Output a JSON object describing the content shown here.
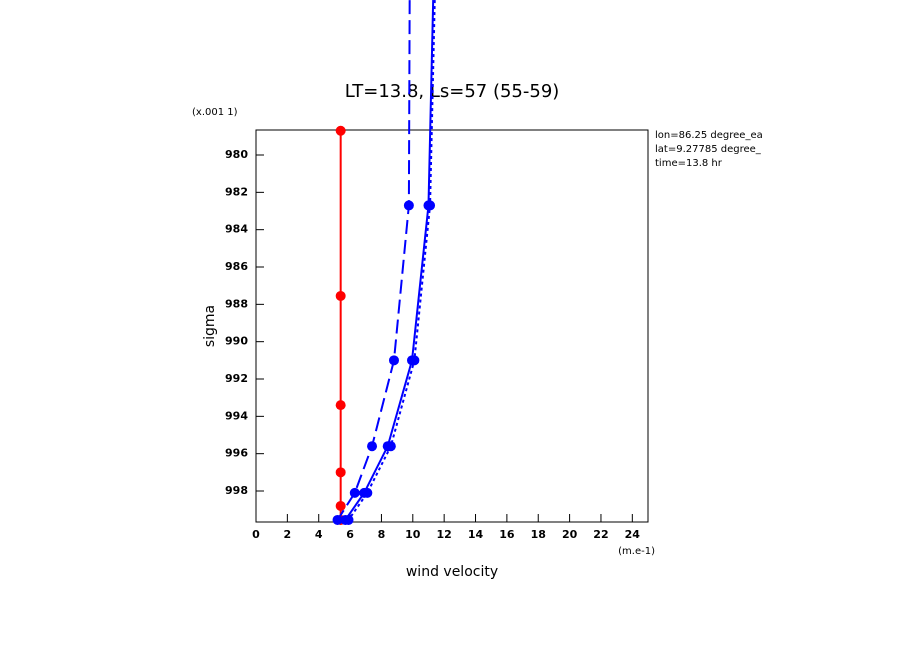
{
  "chart_data": {
    "type": "line",
    "title": "LT=13.8, Ls=57 (55-59)",
    "x_label": "wind velocity",
    "y_label": "sigma",
    "x_unit": "(m.e-1)",
    "y_unit": "(x.001 1)",
    "annotations": [
      "lon=86.25 degree_ea",
      "lat=9.27785 degree_",
      "time=13.8 hr"
    ],
    "xlim": [
      0,
      25
    ],
    "xticks": [
      0,
      2,
      4,
      6,
      8,
      10,
      12,
      14,
      16,
      18,
      20,
      22,
      24
    ],
    "ylim": [
      999.66,
      978.66
    ],
    "yticks": [
      980,
      982,
      984,
      986,
      988,
      990,
      992,
      994,
      996,
      998
    ],
    "series": [
      {
        "color": "#ff0000",
        "style": "solid",
        "x": [
          5.4,
          5.4,
          5.4,
          5.4,
          5.4,
          5.4
        ],
        "y": [
          978.7,
          987.55,
          993.4,
          997.0,
          998.8,
          999.55
        ]
      },
      {
        "color": "#0000ff",
        "style": "solid",
        "x": [
          11.3,
          11.0,
          9.95,
          8.4,
          6.9,
          5.7
        ],
        "y": [
          971.7,
          982.7,
          991.0,
          995.6,
          998.1,
          999.55
        ]
      },
      {
        "color": "#0000ff",
        "style": "dashed",
        "x": [
          9.8,
          9.75,
          8.8,
          7.4,
          6.3,
          5.2
        ],
        "y": [
          971.7,
          982.7,
          991.0,
          995.6,
          998.1,
          999.55
        ]
      },
      {
        "color": "#0000ff",
        "style": "dotted",
        "x": [
          11.4,
          11.1,
          10.1,
          8.6,
          7.1,
          5.9
        ],
        "y": [
          971.7,
          982.7,
          991.0,
          995.6,
          998.1,
          999.55
        ]
      }
    ]
  }
}
